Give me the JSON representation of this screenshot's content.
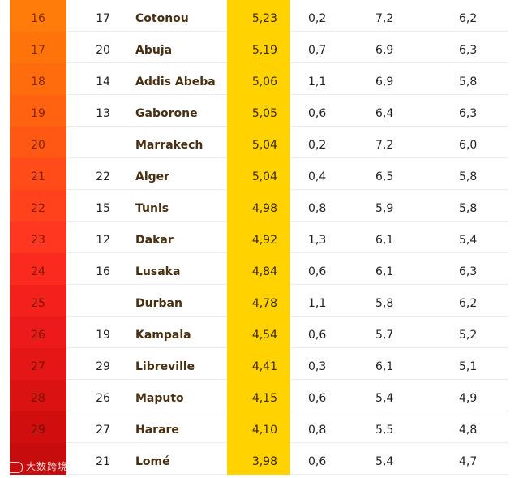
{
  "rows": [
    {
      "rank": "16",
      "prev": "17",
      "city": "Cotonou",
      "score": "5,23",
      "a": "0,2",
      "b": "7,2",
      "c": "6,2",
      "color": "#ff7c0a"
    },
    {
      "rank": "17",
      "prev": "20",
      "city": "Abuja",
      "score": "5,19",
      "a": "0,7",
      "b": "6,9",
      "c": "6,3",
      "color": "#ff740a"
    },
    {
      "rank": "18",
      "prev": "14",
      "city": "Addis Abeba",
      "score": "5,06",
      "a": "1,1",
      "b": "6,9",
      "c": "5,8",
      "color": "#ff6c0e"
    },
    {
      "rank": "19",
      "prev": "13",
      "city": "Gaborone",
      "score": "5,05",
      "a": "0,6",
      "b": "6,4",
      "c": "6,3",
      "color": "#ff6210"
    },
    {
      "rank": "20",
      "prev": "",
      "city": "Marrakech",
      "score": "5,04",
      "a": "0,2",
      "b": "7,2",
      "c": "6,0",
      "color": "#ff5714"
    },
    {
      "rank": "21",
      "prev": "22",
      "city": "Alger",
      "score": "5,04",
      "a": "0,4",
      "b": "6,5",
      "c": "5,8",
      "color": "#ff4c18"
    },
    {
      "rank": "22",
      "prev": "15",
      "city": "Tunis",
      "score": "4,98",
      "a": "0,8",
      "b": "5,9",
      "c": "5,8",
      "color": "#ff421c"
    },
    {
      "rank": "23",
      "prev": "12",
      "city": "Dakar",
      "score": "4,92",
      "a": "1,3",
      "b": "6,1",
      "c": "5,4",
      "color": "#ff3620"
    },
    {
      "rank": "24",
      "prev": "16",
      "city": "Lusaka",
      "score": "4,84",
      "a": "0,6",
      "b": "6,1",
      "c": "6,3",
      "color": "#fa2a1e"
    },
    {
      "rank": "25",
      "prev": "",
      "city": "Durban",
      "score": "4,78",
      "a": "1,1",
      "b": "5,8",
      "c": "6,2",
      "color": "#f4201c"
    },
    {
      "rank": "26",
      "prev": "19",
      "city": "Kampala",
      "score": "4,54",
      "a": "0,6",
      "b": "5,7",
      "c": "5,2",
      "color": "#ec1a1a"
    },
    {
      "rank": "27",
      "prev": "29",
      "city": "Libreville",
      "score": "4,41",
      "a": "0,3",
      "b": "6,1",
      "c": "5,1",
      "color": "#e41616"
    },
    {
      "rank": "28",
      "prev": "26",
      "city": "Maputo",
      "score": "4,15",
      "a": "0,6",
      "b": "5,4",
      "c": "4,9",
      "color": "#da1212"
    },
    {
      "rank": "29",
      "prev": "27",
      "city": "Harare",
      "score": "4,10",
      "a": "0,8",
      "b": "5,5",
      "c": "4,8",
      "color": "#d00e0e"
    },
    {
      "rank": "",
      "prev": "21",
      "city": "Lomé",
      "score": "3,98",
      "a": "0,6",
      "b": "5,4",
      "c": "4,7",
      "color": "#c60c0c"
    }
  ],
  "watermark": {
    "text": "大数跨境",
    "icon": "watermark-logo-icon"
  }
}
